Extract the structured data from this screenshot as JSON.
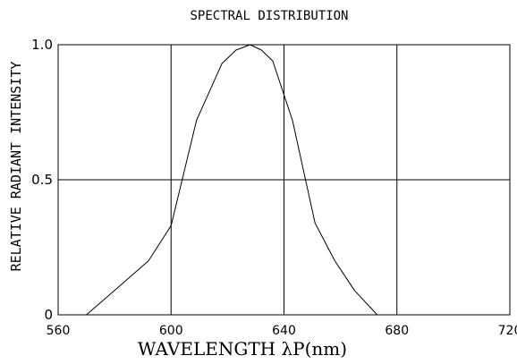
{
  "chart_data": {
    "type": "line",
    "title": "SPECTRAL DISTRIBUTION",
    "xlabel": "WAVELENGTH  λP(nm)",
    "ylabel": "RELATIVE RADIANT INTENSITY",
    "xlim": [
      560,
      720
    ],
    "ylim": [
      0,
      1.0
    ],
    "x_ticks": [
      560,
      600,
      640,
      680,
      720
    ],
    "x_tick_labels": [
      "560",
      "600",
      "640",
      "680",
      "720"
    ],
    "y_ticks": [
      0,
      0.5,
      1.0
    ],
    "y_tick_labels": [
      "0",
      "0.5",
      "1.0"
    ],
    "grid": true,
    "legend": "none",
    "line_color": "#000000",
    "series": [
      {
        "x": [
          570,
          580,
          592,
          600,
          609,
          618,
          623,
          628,
          632,
          636,
          643,
          651,
          658,
          665,
          673,
          685
        ],
        "y": [
          0,
          0.09,
          0.2,
          0.33,
          0.72,
          0.93,
          0.98,
          1.0,
          0.98,
          0.94,
          0.72,
          0.34,
          0.2,
          0.09,
          0,
          0
        ]
      }
    ]
  }
}
